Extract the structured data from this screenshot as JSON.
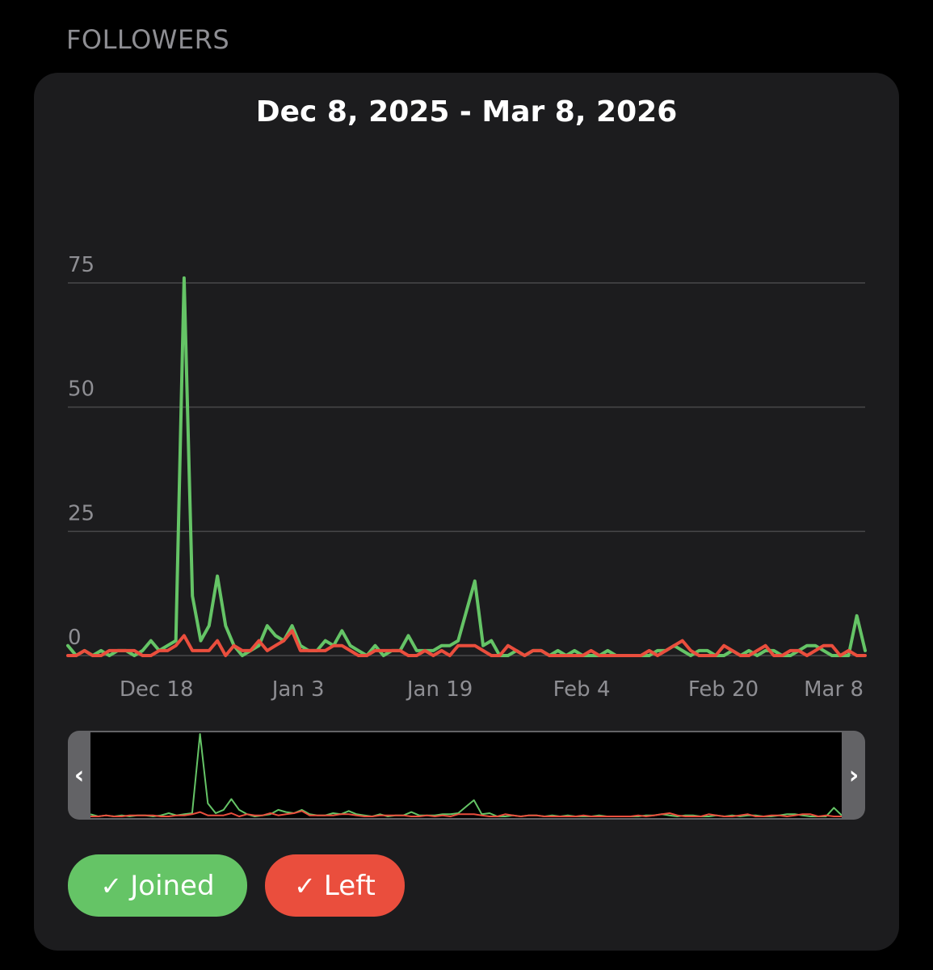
{
  "section_title": "FOLLOWERS",
  "chart_title": "Dec 8, 2025 - Mar 8, 2026",
  "legend": {
    "joined_label": "Joined",
    "left_label": "Left",
    "check_glyph": "✓",
    "joined_color": "#65c466",
    "left_color": "#ea4e3d"
  },
  "scrubber": {
    "left_glyph": "‹",
    "right_glyph": "›"
  },
  "chart_data": {
    "type": "line",
    "title": "Dec 8, 2025 - Mar 8, 2026",
    "x_start": "2025-12-08",
    "x_end": "2026-03-08",
    "x_tick_labels": [
      "Dec 18",
      "Jan 3",
      "Jan 19",
      "Feb 4",
      "Feb 20",
      "Mar 8"
    ],
    "x_tick_dates": [
      "2025-12-18",
      "2026-01-03",
      "2026-01-19",
      "2026-02-04",
      "2026-02-20",
      "2026-03-08"
    ],
    "y_ticks": [
      0,
      25,
      50,
      75
    ],
    "ylim": [
      0,
      80
    ],
    "grid": true,
    "series": [
      {
        "name": "Joined",
        "color": "#65c466",
        "values": [
          2,
          0,
          1,
          0,
          1,
          0,
          1,
          1,
          0,
          1,
          3,
          1,
          2,
          3,
          76,
          12,
          3,
          6,
          16,
          6,
          2,
          0,
          1,
          2,
          6,
          4,
          3,
          6,
          2,
          1,
          1,
          3,
          2,
          5,
          2,
          1,
          0,
          2,
          0,
          1,
          1,
          4,
          1,
          1,
          1,
          2,
          2,
          3,
          9,
          15,
          2,
          3,
          0,
          0,
          1,
          0,
          1,
          1,
          0,
          1,
          0,
          1,
          0,
          0,
          0,
          1,
          0,
          0,
          0,
          0,
          0,
          1,
          1,
          2,
          1,
          0,
          1,
          1,
          0,
          0,
          1,
          0,
          1,
          0,
          1,
          1,
          0,
          0,
          1,
          2,
          2,
          1,
          0,
          0,
          0,
          8,
          1
        ]
      },
      {
        "name": "Left",
        "color": "#ea4e3d",
        "values": [
          0,
          0,
          1,
          0,
          0,
          1,
          1,
          1,
          1,
          0,
          0,
          1,
          1,
          2,
          4,
          1,
          1,
          1,
          3,
          0,
          2,
          1,
          1,
          3,
          1,
          2,
          3,
          5,
          1,
          1,
          1,
          1,
          2,
          2,
          1,
          0,
          0,
          1,
          1,
          1,
          1,
          0,
          0,
          1,
          0,
          1,
          0,
          2,
          2,
          2,
          1,
          0,
          0,
          2,
          1,
          0,
          1,
          1,
          0,
          0,
          0,
          0,
          0,
          1,
          0,
          0,
          0,
          0,
          0,
          0,
          1,
          0,
          1,
          2,
          3,
          1,
          0,
          0,
          0,
          2,
          1,
          0,
          0,
          1,
          2,
          0,
          0,
          1,
          1,
          0,
          1,
          2,
          2,
          0,
          1,
          0,
          0
        ]
      }
    ]
  }
}
